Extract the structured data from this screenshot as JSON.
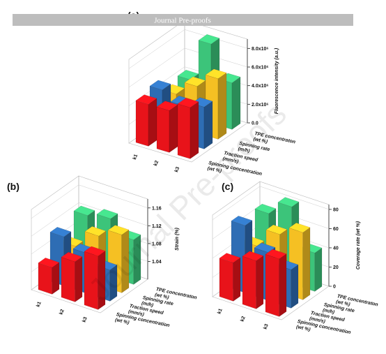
{
  "banner": "Journal Pre-proofs",
  "watermark": "Journal Pre-proofs",
  "chart_data": [
    {
      "type": "bar3d",
      "panel_label": "(a)",
      "y_label": "Fluorescence intensity (a.u.)",
      "categories": [
        "k1",
        "k2",
        "k3"
      ],
      "ylim": [
        0,
        9000000
      ],
      "yticks": [
        {
          "value": 0,
          "label": "0.0"
        },
        {
          "value": 2000000,
          "label": "2.0x10⁶"
        },
        {
          "value": 4000000,
          "label": "4.0x10⁶"
        },
        {
          "value": 6000000,
          "label": "6.0x10⁶"
        },
        {
          "value": 8000000,
          "label": "8.0x10⁶"
        }
      ],
      "series": [
        {
          "name": "TPE concentraton",
          "unit": "(wt %)",
          "color": "#3cc47a",
          "values": [
            4000000,
            8500000,
            5000000
          ]
        },
        {
          "name": "Spinning rate",
          "unit": "(m/h)",
          "color": "#f5c023",
          "values": [
            3500000,
            5000000,
            6500000
          ]
        },
        {
          "name": "Traction speed",
          "unit": "(mm/s)",
          "color": "#2e6db4",
          "values": [
            5000000,
            4000000,
            4500000
          ]
        },
        {
          "name": "Spinning concentration",
          "unit": "(wt %)",
          "color": "#e8131a",
          "values": [
            4500000,
            4500000,
            5500000
          ]
        }
      ]
    },
    {
      "type": "bar3d",
      "panel_label": "(b)",
      "y_label": "Strain (%)",
      "categories": [
        "k1",
        "k2",
        "k3"
      ],
      "ylim": [
        1.0,
        1.18
      ],
      "yticks": [
        1.04,
        1.08,
        1.12,
        1.16
      ],
      "series": [
        {
          "name": "TPE concentraton",
          "unit": "(wt %)",
          "color": "#3cc47a",
          "values": [
            1.12,
            1.13,
            1.1
          ]
        },
        {
          "name": "Spinning rate",
          "unit": "(m/h)",
          "color": "#f5c023",
          "values": [
            1.07,
            1.11,
            1.13
          ]
        },
        {
          "name": "Traction speed",
          "unit": "(mm/s)",
          "color": "#2e6db4",
          "values": [
            1.11,
            1.09,
            1.07
          ]
        },
        {
          "name": "Spinning concentration",
          "unit": "(wt %)",
          "color": "#e8131a",
          "values": [
            1.06,
            1.09,
            1.12
          ]
        }
      ]
    },
    {
      "type": "bar3d",
      "panel_label": "(c)",
      "y_label": "Coverage rate (wt %)",
      "categories": [
        "k1",
        "k2",
        "k3"
      ],
      "ylim": [
        0,
        85
      ],
      "yticks": [
        0,
        20,
        40,
        60,
        80
      ],
      "series": [
        {
          "name": "TPE concentraton",
          "unit": "(wt %)",
          "color": "#3cc47a",
          "values": [
            65,
            80,
            40
          ]
        },
        {
          "name": "Spinning rate",
          "unit": "(m/h)",
          "color": "#f5c023",
          "values": [
            40,
            60,
            70
          ]
        },
        {
          "name": "Traction speed",
          "unit": "(mm/s)",
          "color": "#2e6db4",
          "values": [
            70,
            50,
            40
          ]
        },
        {
          "name": "Spinning concentration",
          "unit": "(wt %)",
          "color": "#e8131a",
          "values": [
            40,
            50,
            60
          ]
        }
      ]
    }
  ]
}
